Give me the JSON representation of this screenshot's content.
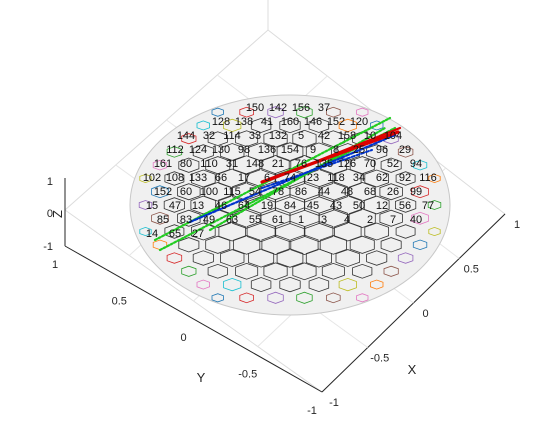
{
  "chart_data": {
    "type": "3d-sphere-hexagonal-grid",
    "title": "",
    "axes": {
      "x": {
        "label": "X",
        "ticks": [
          "-1",
          "-0.5",
          "0",
          "0.5",
          "1"
        ],
        "range": [
          -1,
          1
        ]
      },
      "y": {
        "label": "Y",
        "ticks": [
          "1",
          "0.5",
          "0",
          "-0.5",
          "-1"
        ],
        "range": [
          -1,
          1
        ]
      },
      "z": {
        "label": "Z",
        "ticks": [
          "1",
          "0",
          "-1"
        ],
        "range": [
          -1,
          1
        ]
      }
    },
    "grid": true,
    "cell_labels": [
      "150",
      "142",
      "156",
      "37",
      "128",
      "138",
      "41",
      "160",
      "146",
      "152",
      "120",
      "144",
      "32",
      "114",
      "33",
      "132",
      "5",
      "42",
      "158",
      "10",
      "104",
      "112",
      "124",
      "130",
      "98",
      "136",
      "154",
      "9",
      "8",
      "25",
      "96",
      "29",
      "161",
      "80",
      "110",
      "31",
      "148",
      "21",
      "76",
      "135",
      "126",
      "70",
      "52",
      "94",
      "102",
      "108",
      "133",
      "66",
      "17",
      "6",
      "74",
      "23",
      "118",
      "34",
      "62",
      "92",
      "116",
      "152",
      "60",
      "100",
      "115",
      "54",
      "78",
      "86",
      "44",
      "48",
      "68",
      "26",
      "99",
      "15",
      "47",
      "13",
      "46",
      "64",
      "19",
      "84",
      "45",
      "43",
      "50",
      "12",
      "56",
      "77",
      "85",
      "83",
      "49",
      "63",
      "55",
      "61",
      "1",
      "3",
      "4",
      "2",
      "7",
      "40",
      "14",
      "65",
      "27"
    ],
    "trajectories": [
      {
        "color": "#0033cc",
        "style": "solid"
      },
      {
        "color": "#dd0000",
        "style": "solid"
      },
      {
        "color": "#22cc22",
        "style": "dotted"
      }
    ]
  }
}
